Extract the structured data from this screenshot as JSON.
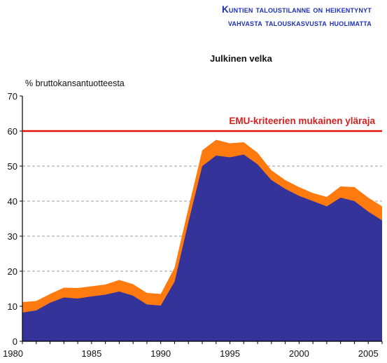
{
  "headline": {
    "line1": "Kuntien taloustilanne on heikentynyt",
    "line2": "vahvasta talouskasvusta huolimatta"
  },
  "chart_data": {
    "type": "area",
    "title": "Julkinen velka",
    "ylabel": "% bruttokansantuotteesta",
    "xlabel": "",
    "xlim": [
      1980,
      2006
    ],
    "ylim": [
      0,
      70
    ],
    "y_ticks": [
      0,
      10,
      20,
      30,
      40,
      50,
      60,
      70
    ],
    "x_ticks": [
      1980,
      1985,
      1990,
      1995,
      2000,
      2005
    ],
    "grid": "horizontal-dashed",
    "x": [
      1980,
      1981,
      1982,
      1983,
      1984,
      1985,
      1986,
      1987,
      1988,
      1989,
      1990,
      1991,
      1992,
      1993,
      1994,
      1995,
      1996,
      1997,
      1998,
      1999,
      2000,
      2001,
      2002,
      2003,
      2004,
      2005,
      2006
    ],
    "series": [
      {
        "color": "#333399",
        "values": [
          8.2,
          8.8,
          11.0,
          12.5,
          12.2,
          12.8,
          13.3,
          14.2,
          13.0,
          10.5,
          10.2,
          17.0,
          34.0,
          50.0,
          53.0,
          52.5,
          53.3,
          50.5,
          46.0,
          43.5,
          41.5,
          40.0,
          38.5,
          41.0,
          40.0,
          37.0,
          34.5
        ]
      },
      {
        "color": "#ff7b0f",
        "values": [
          11.2,
          11.5,
          13.5,
          15.3,
          15.2,
          15.7,
          16.2,
          17.5,
          16.3,
          13.8,
          13.5,
          21.0,
          38.0,
          54.5,
          57.5,
          56.5,
          56.8,
          53.8,
          48.8,
          46.0,
          44.0,
          42.3,
          41.2,
          44.2,
          44.0,
          41.0,
          38.5
        ]
      }
    ],
    "reference_line": {
      "value": 60,
      "label": "EMU-kriteerien mukainen yläraja",
      "color": "#e01010"
    }
  }
}
